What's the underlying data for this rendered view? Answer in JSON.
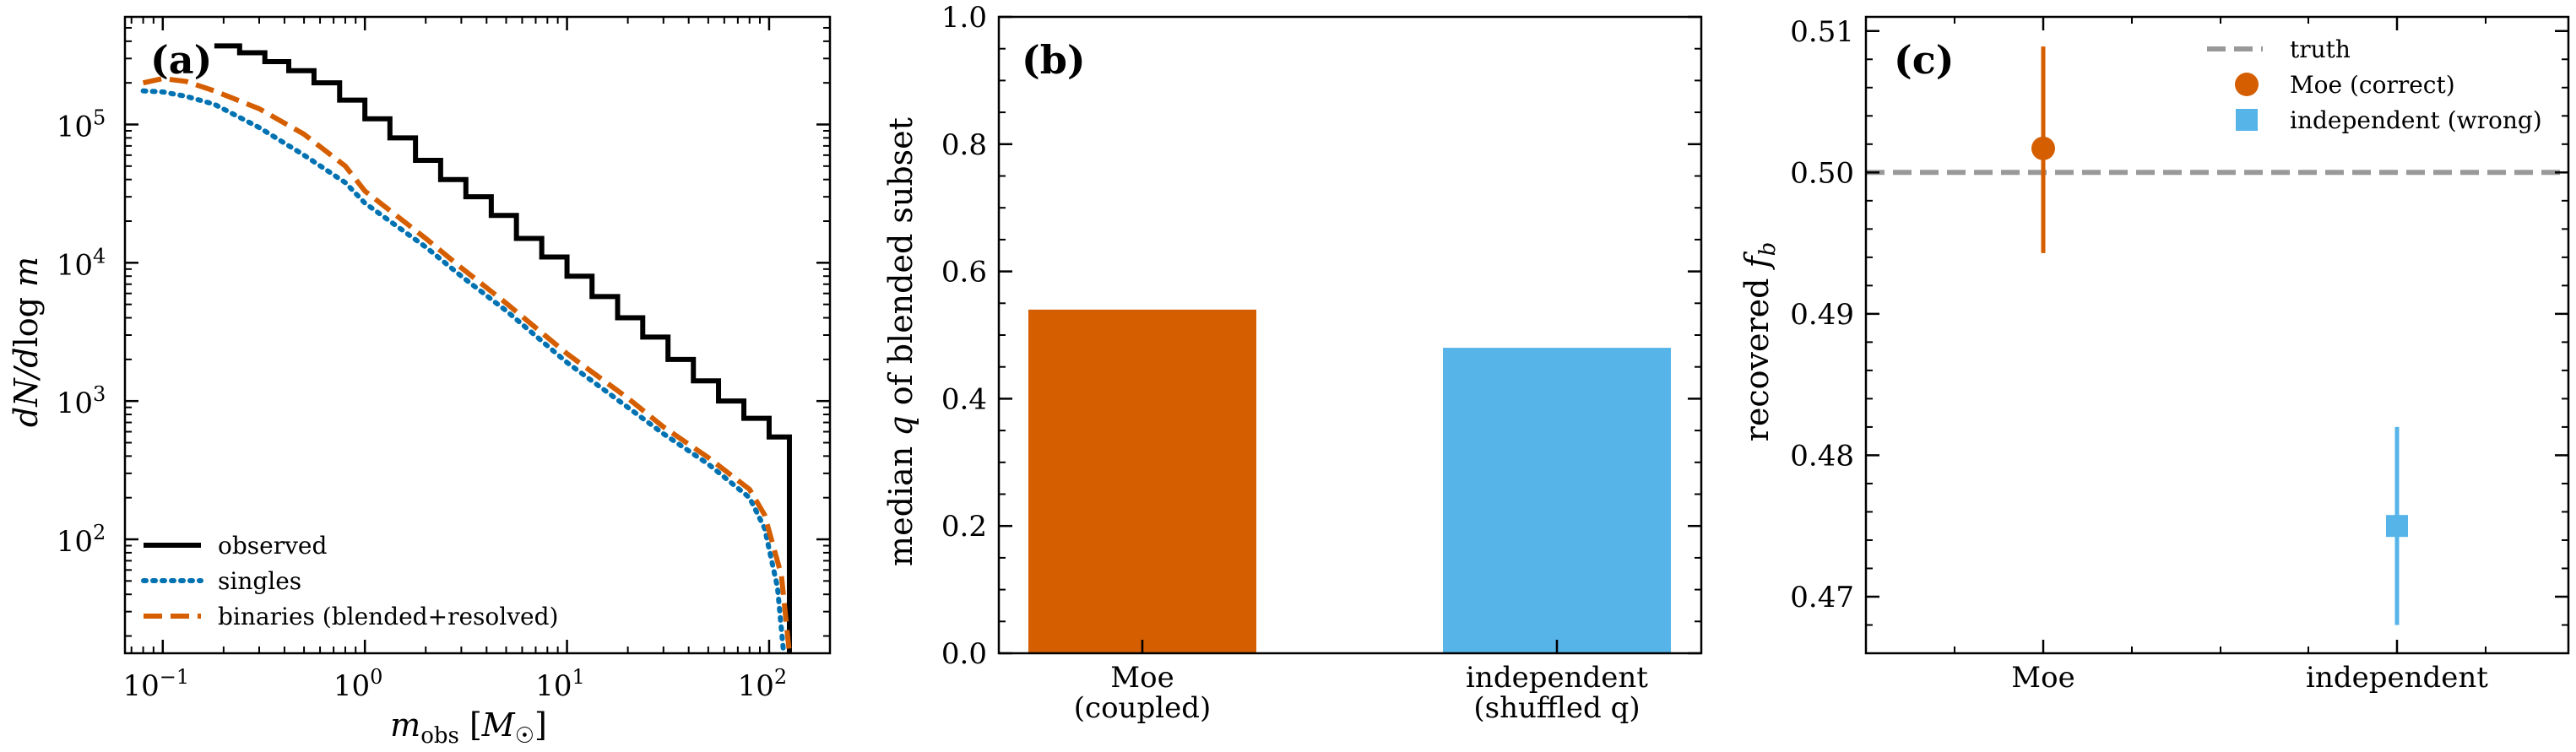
{
  "chart_data": [
    {
      "type": "line",
      "panel": "(a)",
      "xlabel": "m_obs [M_☉]",
      "ylabel": "dN/d log m",
      "xscale": "log",
      "yscale": "log",
      "xlim": [
        0.065,
        200
      ],
      "ylim": [
        15,
        600000
      ],
      "xticks": [
        {
          "value": 0.1,
          "base": "10",
          "exp": "−1"
        },
        {
          "value": 1,
          "base": "10",
          "exp": "0"
        },
        {
          "value": 10,
          "base": "10",
          "exp": "1"
        },
        {
          "value": 100,
          "base": "10",
          "exp": "2"
        }
      ],
      "yticks": [
        {
          "value": 100,
          "base": "10",
          "exp": "2"
        },
        {
          "value": 1000,
          "base": "10",
          "exp": "3"
        },
        {
          "value": 10000,
          "base": "10",
          "exp": "4"
        },
        {
          "value": 100000,
          "base": "10",
          "exp": "5"
        }
      ],
      "legend_position": "lower-left",
      "series": [
        {
          "name": "observed",
          "style": "steps-solid",
          "color": "#000000",
          "x": [
            0.18,
            0.24,
            0.32,
            0.42,
            0.56,
            0.75,
            1.0,
            1.33,
            1.78,
            2.37,
            3.16,
            4.22,
            5.62,
            7.5,
            10.0,
            13.3,
            17.8,
            23.7,
            31.6,
            42.2,
            56.2,
            75.0,
            100,
            126
          ],
          "y": [
            370000,
            330000,
            285000,
            245000,
            200000,
            150000,
            110000,
            80000,
            55000,
            40000,
            30000,
            22000,
            15000,
            11000,
            8000,
            5700,
            4000,
            2900,
            2000,
            1400,
            1000,
            750,
            550,
            110
          ]
        },
        {
          "name": "singles",
          "style": "dotted",
          "color": "#0072B2",
          "x": [
            0.08,
            0.1,
            0.13,
            0.18,
            0.3,
            0.5,
            0.8,
            1.0,
            2.0,
            3.0,
            5.0,
            10.0,
            20.0,
            30.0,
            50.0,
            80.0,
            95.0,
            110,
            118
          ],
          "y": [
            175000,
            172000,
            160000,
            140000,
            95000,
            60000,
            38000,
            27000,
            13000,
            8000,
            4500,
            1900,
            900,
            580,
            350,
            200,
            120,
            45,
            15
          ]
        },
        {
          "name": "binaries (blended+resolved)",
          "style": "dashed",
          "color": "#D55E00",
          "x": [
            0.08,
            0.1,
            0.13,
            0.18,
            0.3,
            0.5,
            0.8,
            1.0,
            2.0,
            3.0,
            5.0,
            10.0,
            20.0,
            30.0,
            50.0,
            80.0,
            95.0,
            115,
            126
          ],
          "y": [
            200000,
            215000,
            205000,
            175000,
            130000,
            85000,
            50000,
            33000,
            15000,
            9200,
            5100,
            2200,
            1050,
            650,
            390,
            230,
            150,
            55,
            15
          ]
        }
      ]
    },
    {
      "type": "bar",
      "panel": "(b)",
      "categories": [
        "Moe\n(coupled)",
        "independent\n(shuffled q)"
      ],
      "values": [
        0.54,
        0.48
      ],
      "colors": [
        "#D55E00",
        "#56B4E9"
      ],
      "xlabel": "",
      "ylabel": "median q of blended subset",
      "ylim": [
        0,
        1.0
      ],
      "yticks": [
        "0.0",
        "0.2",
        "0.4",
        "0.6",
        "0.8",
        "1.0"
      ]
    },
    {
      "type": "scatter",
      "panel": "(c)",
      "categories": [
        "Moe",
        "independent"
      ],
      "ylabel": "recovered f_b",
      "ylim": [
        0.466,
        0.511
      ],
      "yticks": [
        "0.47",
        "0.48",
        "0.49",
        "0.50",
        "0.51"
      ],
      "truth": 0.5,
      "legend_position": "top-right",
      "series": [
        {
          "name": "Moe (correct)",
          "category": "Moe",
          "value": 0.5017,
          "err_low": 0.4943,
          "err_high": 0.5089,
          "color": "#D55E00",
          "marker": "circle"
        },
        {
          "name": "independent (wrong)",
          "category": "independent",
          "value": 0.475,
          "err_low": 0.468,
          "err_high": 0.482,
          "color": "#56B4E9",
          "marker": "square"
        }
      ],
      "truth_label": "truth",
      "truth_color": "#999999"
    }
  ]
}
